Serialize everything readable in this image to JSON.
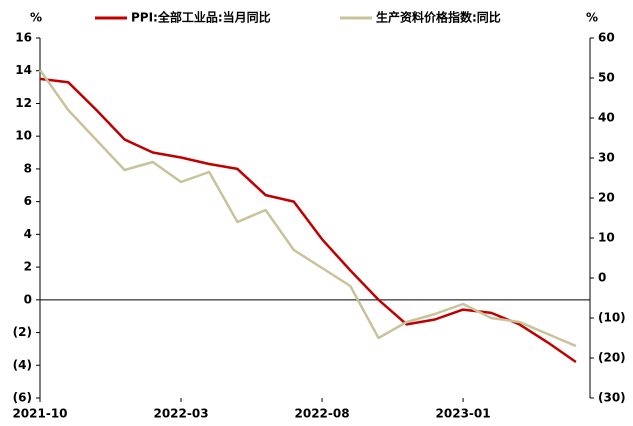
{
  "chart_data": {
    "type": "line",
    "x": [
      "2021-10",
      "2021-11",
      "2021-12",
      "2022-01",
      "2022-02",
      "2022-03",
      "2022-04",
      "2022-05",
      "2022-06",
      "2022-07",
      "2022-08",
      "2022-09",
      "2022-10",
      "2022-11",
      "2022-12",
      "2023-01",
      "2023-02",
      "2023-03",
      "2023-04",
      "2023-05"
    ],
    "xticks": [
      "2021-10",
      "2022-03",
      "2022-08",
      "2023-01"
    ],
    "series": [
      {
        "name": "PPI:全部工业品:当月同比",
        "color": "#c00000",
        "values": [
          13.5,
          13.3,
          11.6,
          9.8,
          9.0,
          8.7,
          8.3,
          8.0,
          6.4,
          6.0,
          3.7,
          1.8,
          0.0,
          -1.5,
          -1.2,
          -0.6,
          -0.8,
          -1.5,
          -2.6,
          -3.8
        ]
      },
      {
        "name": "生产资料价格指数:同比",
        "color": "#c8c39a",
        "axis": "y2",
        "values": [
          52,
          42,
          34.5,
          27,
          29,
          24,
          26.5,
          14,
          17,
          7,
          2.5,
          -2,
          -15,
          -11,
          -9,
          -6.5,
          -10,
          -11,
          -14,
          -17
        ]
      }
    ],
    "ylabel": "%",
    "y2label": "%",
    "ylim": [
      -6,
      16
    ],
    "yticks": [
      {
        "value": -6,
        "label": "(6)"
      },
      {
        "value": -4,
        "label": "(4)"
      },
      {
        "value": -2,
        "label": "(2)"
      },
      0,
      2,
      4,
      6,
      8,
      10,
      12,
      14,
      16
    ],
    "y2lim": [
      -30,
      60
    ],
    "y2ticks": [
      {
        "value": -30,
        "label": "(30)"
      },
      {
        "value": -20,
        "label": "(20)"
      },
      {
        "value": -10,
        "label": "(10)"
      },
      0,
      10,
      20,
      30,
      40,
      50,
      60
    ]
  }
}
